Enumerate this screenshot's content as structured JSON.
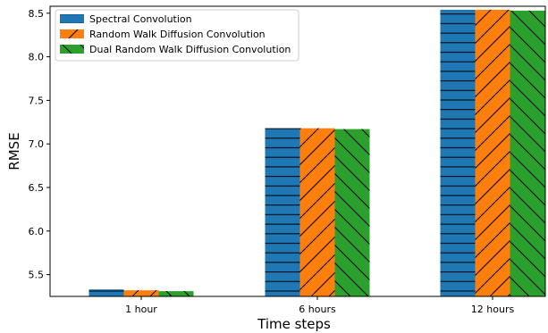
{
  "chart_data": {
    "type": "bar",
    "categories": [
      "1 hour",
      "6 hours",
      "12 hours"
    ],
    "series": [
      {
        "name": "Spectral Convolution",
        "values": [
          5.33,
          7.18,
          8.54
        ],
        "color": "#1f77b4",
        "hatch": "horizontal"
      },
      {
        "name": "Random Walk Diffusion Convolution",
        "values": [
          5.32,
          7.18,
          8.54
        ],
        "color": "#ff7f0e",
        "hatch": "forward-diagonal"
      },
      {
        "name": "Dual Random Walk Diffusion Convolution",
        "values": [
          5.31,
          7.17,
          8.53
        ],
        "color": "#2ca02c",
        "hatch": "back-diagonal"
      }
    ],
    "xlabel": "Time steps",
    "ylabel": "RMSE",
    "ylim": [
      5.25,
      8.58
    ],
    "yticks": [
      "5.5",
      "6.0",
      "6.5",
      "7.0",
      "7.5",
      "8.0",
      "8.5"
    ],
    "grid": false,
    "legend_position": "top-left"
  }
}
